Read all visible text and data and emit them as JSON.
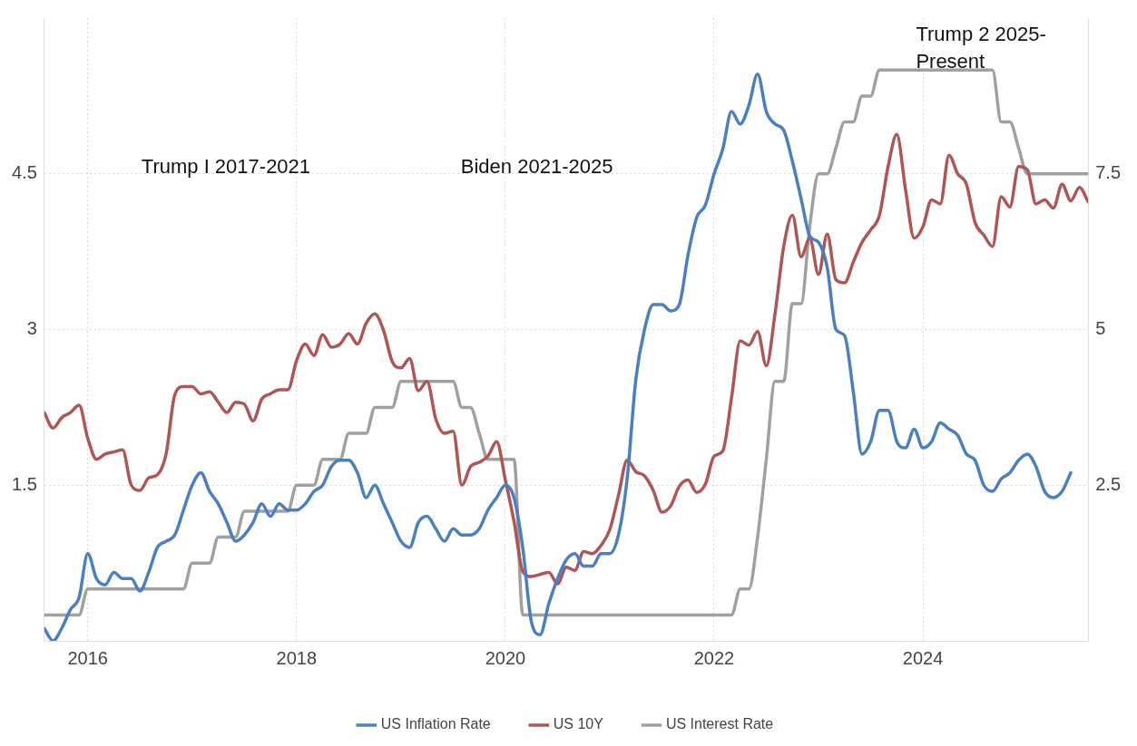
{
  "chart_data": {
    "type": "line",
    "x": [
      "2015-08",
      "2015-09",
      "2015-10",
      "2015-11",
      "2015-12",
      "2016-01",
      "2016-02",
      "2016-03",
      "2016-04",
      "2016-05",
      "2016-06",
      "2016-07",
      "2016-08",
      "2016-09",
      "2016-10",
      "2016-11",
      "2016-12",
      "2017-01",
      "2017-02",
      "2017-03",
      "2017-04",
      "2017-05",
      "2017-06",
      "2017-07",
      "2017-08",
      "2017-09",
      "2017-10",
      "2017-11",
      "2017-12",
      "2018-01",
      "2018-02",
      "2018-03",
      "2018-04",
      "2018-05",
      "2018-06",
      "2018-07",
      "2018-08",
      "2018-09",
      "2018-10",
      "2018-11",
      "2018-12",
      "2019-01",
      "2019-02",
      "2019-03",
      "2019-04",
      "2019-05",
      "2019-06",
      "2019-07",
      "2019-08",
      "2019-09",
      "2019-10",
      "2019-11",
      "2019-12",
      "2020-01",
      "2020-02",
      "2020-03",
      "2020-04",
      "2020-05",
      "2020-06",
      "2020-07",
      "2020-08",
      "2020-09",
      "2020-10",
      "2020-11",
      "2020-12",
      "2021-01",
      "2021-02",
      "2021-03",
      "2021-04",
      "2021-05",
      "2021-06",
      "2021-07",
      "2021-08",
      "2021-09",
      "2021-10",
      "2021-11",
      "2021-12",
      "2022-01",
      "2022-02",
      "2022-03",
      "2022-04",
      "2022-05",
      "2022-06",
      "2022-07",
      "2022-08",
      "2022-09",
      "2022-10",
      "2022-11",
      "2022-12",
      "2023-01",
      "2023-02",
      "2023-03",
      "2023-04",
      "2023-05",
      "2023-06",
      "2023-07",
      "2023-08",
      "2023-09",
      "2023-10",
      "2023-11",
      "2023-12",
      "2024-01",
      "2024-02",
      "2024-03",
      "2024-04",
      "2024-05",
      "2024-06",
      "2024-07",
      "2024-08",
      "2024-09",
      "2024-10",
      "2024-11",
      "2024-12",
      "2025-01",
      "2025-02",
      "2025-03",
      "2025-04",
      "2025-05",
      "2025-06",
      "2025-07",
      "2025-08"
    ],
    "series": [
      {
        "name": "US Inflation Rate",
        "color": "#4a7fc1",
        "axis": "y2",
        "values": [
          0.2,
          0.0,
          0.2,
          0.5,
          0.7,
          1.4,
          1.0,
          0.9,
          1.1,
          1.0,
          1.0,
          0.8,
          1.1,
          1.5,
          1.6,
          1.7,
          2.1,
          2.5,
          2.7,
          2.4,
          2.2,
          1.9,
          1.6,
          1.7,
          1.9,
          2.2,
          2.0,
          2.2,
          2.1,
          2.1,
          2.2,
          2.4,
          2.5,
          2.8,
          2.9,
          2.9,
          2.7,
          2.3,
          2.5,
          2.2,
          1.9,
          1.6,
          1.5,
          1.9,
          2.0,
          1.8,
          1.6,
          1.8,
          1.7,
          1.7,
          1.8,
          2.1,
          2.3,
          2.5,
          2.3,
          1.5,
          0.3,
          0.1,
          0.6,
          1.0,
          1.3,
          1.4,
          1.2,
          1.2,
          1.4,
          1.4,
          1.7,
          2.6,
          4.2,
          5.0,
          5.4,
          5.4,
          5.3,
          5.4,
          6.2,
          6.8,
          7.0,
          7.5,
          7.9,
          8.5,
          8.3,
          8.6,
          9.1,
          8.5,
          8.3,
          8.2,
          7.7,
          7.1,
          6.5,
          6.4,
          6.0,
          5.0,
          4.9,
          4.0,
          3.0,
          3.2,
          3.7,
          3.7,
          3.2,
          3.1,
          3.4,
          3.1,
          3.2,
          3.5,
          3.4,
          3.3,
          3.0,
          2.9,
          2.5,
          2.4,
          2.6,
          2.7,
          2.9,
          3.0,
          2.8,
          2.4,
          2.3,
          2.4,
          2.7,
          null,
          null
        ]
      },
      {
        "name": "US 10Y",
        "color": "#b05555",
        "values": [
          2.2,
          2.05,
          2.15,
          2.2,
          2.27,
          1.95,
          1.75,
          1.8,
          1.82,
          1.84,
          1.5,
          1.45,
          1.57,
          1.6,
          1.8,
          2.37,
          2.45,
          2.45,
          2.38,
          2.4,
          2.3,
          2.2,
          2.3,
          2.28,
          2.12,
          2.33,
          2.38,
          2.42,
          2.42,
          2.7,
          2.86,
          2.75,
          2.95,
          2.83,
          2.86,
          2.96,
          2.86,
          3.06,
          3.15,
          2.99,
          2.69,
          2.63,
          2.72,
          2.41,
          2.5,
          2.14,
          2.0,
          2.02,
          1.5,
          1.68,
          1.72,
          1.78,
          1.92,
          1.55,
          1.15,
          0.67,
          0.62,
          0.64,
          0.66,
          0.55,
          0.71,
          0.68,
          0.86,
          0.84,
          0.92,
          1.07,
          1.4,
          1.74,
          1.63,
          1.59,
          1.45,
          1.24,
          1.3,
          1.49,
          1.55,
          1.43,
          1.51,
          1.78,
          1.83,
          2.34,
          2.89,
          2.85,
          2.98,
          2.65,
          3.15,
          3.8,
          4.1,
          3.7,
          3.88,
          3.53,
          3.92,
          3.48,
          3.45,
          3.65,
          3.84,
          3.96,
          4.1,
          4.57,
          4.88,
          4.35,
          3.88,
          3.99,
          4.25,
          4.21,
          4.68,
          4.5,
          4.4,
          4.03,
          3.91,
          3.8,
          4.28,
          4.18,
          4.57,
          4.54,
          4.21,
          4.25,
          4.17,
          4.4,
          4.24,
          4.37,
          4.23
        ]
      },
      {
        "name": "US Interest Rate",
        "color": "#a0a0a0",
        "x": [
          "2015-08",
          "2015-12",
          "2016-01",
          "2016-12",
          "2017-01",
          "2017-03",
          "2017-04",
          "2017-06",
          "2017-07",
          "2017-12",
          "2018-01",
          "2018-03",
          "2018-04",
          "2018-06",
          "2018-07",
          "2018-09",
          "2018-10",
          "2018-12",
          "2019-01",
          "2019-07",
          "2019-08",
          "2019-09",
          "2019-10",
          "2019-11",
          "2020-02",
          "2020-03",
          "2022-03",
          "2022-04",
          "2022-05",
          "2022-06",
          "2022-07",
          "2022-08",
          "2022-09",
          "2022-10",
          "2022-11",
          "2022-12",
          "2023-01",
          "2023-02",
          "2023-03",
          "2023-04",
          "2023-05",
          "2023-06",
          "2023-07",
          "2023-08",
          "2024-09",
          "2024-10",
          "2024-11",
          "2024-12",
          "2025-01",
          "2025-08"
        ],
        "values": [
          0.25,
          0.25,
          0.5,
          0.5,
          0.75,
          0.75,
          1.0,
          1.0,
          1.25,
          1.25,
          1.5,
          1.5,
          1.75,
          1.75,
          2.0,
          2.0,
          2.25,
          2.25,
          2.5,
          2.5,
          2.25,
          2.25,
          2.0,
          1.75,
          1.75,
          0.25,
          0.25,
          0.5,
          0.5,
          1.0,
          1.75,
          2.5,
          2.5,
          3.25,
          3.25,
          4.0,
          4.5,
          4.5,
          4.75,
          5.0,
          5.0,
          5.25,
          5.25,
          5.5,
          5.5,
          5.0,
          5.0,
          4.75,
          4.5,
          4.5
        ]
      }
    ],
    "xlim": [
      "2015-08",
      "2025-08"
    ],
    "xticks": [
      "2016",
      "2018",
      "2020",
      "2022",
      "2024"
    ],
    "ylim": [
      0,
      6
    ],
    "yticks": [
      1.5,
      3,
      4.5
    ],
    "y2lim": [
      0,
      10
    ],
    "y2ticks": [
      2.5,
      5,
      7.5
    ],
    "annotations": [
      "Trump I 2017-2021",
      "Biden 2021-2025",
      "Trump 2 2025-Present"
    ],
    "grid": true,
    "legend": "bottom",
    "marker": "none",
    "line_style": "solid"
  }
}
